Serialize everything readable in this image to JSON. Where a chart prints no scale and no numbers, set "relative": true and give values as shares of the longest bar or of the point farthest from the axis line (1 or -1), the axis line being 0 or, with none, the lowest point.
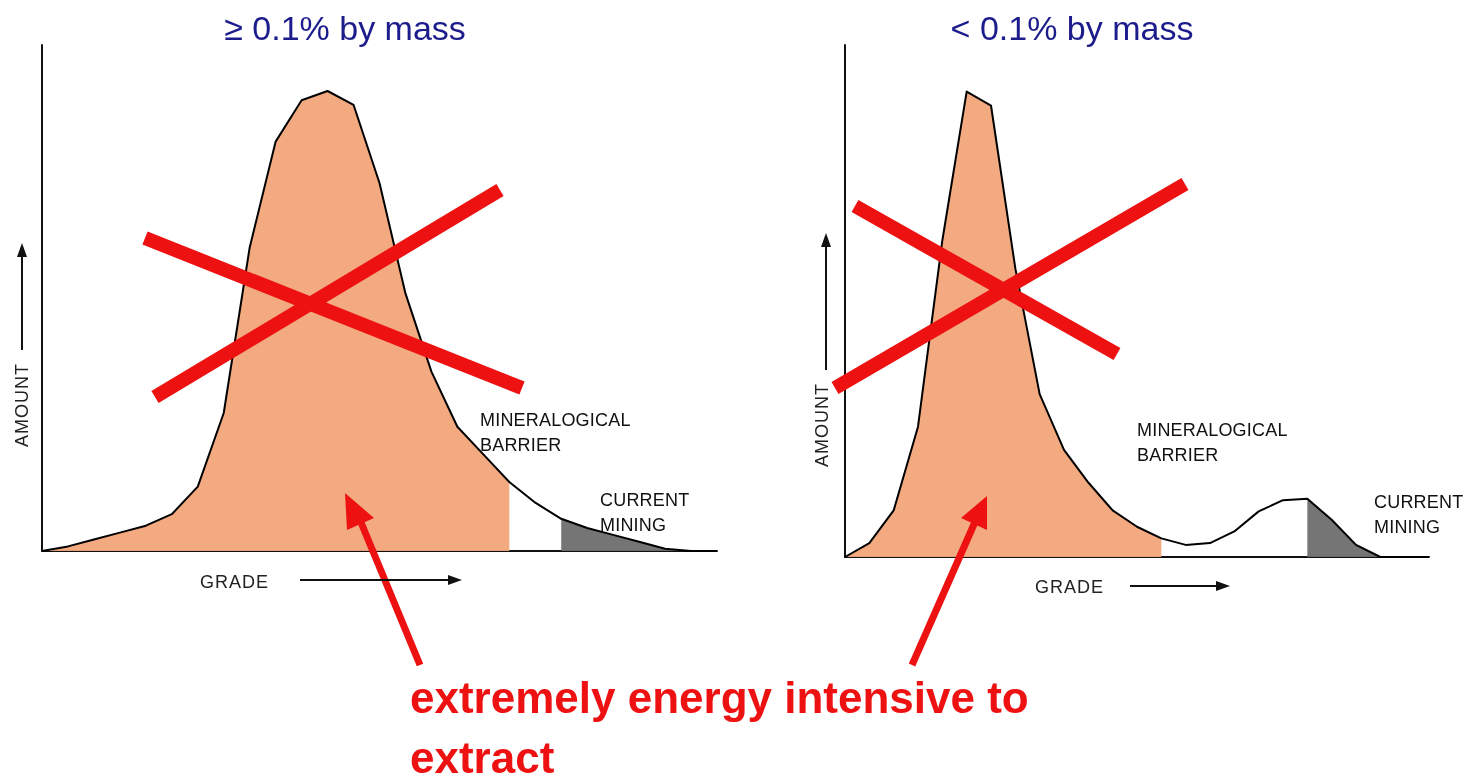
{
  "chart_data": [
    {
      "type": "area",
      "title": "≥ 0.1% by mass",
      "xlabel": "GRADE",
      "ylabel": "AMOUNT",
      "relative": true,
      "tick_labels": false,
      "grid": false,
      "marker": "none",
      "categories": [
        null,
        null,
        null,
        null,
        null,
        null,
        null,
        null,
        null,
        null,
        null,
        null,
        null,
        null,
        null,
        null,
        null,
        null,
        null,
        null,
        null,
        null,
        null,
        null,
        null,
        null,
        null
      ],
      "series": [
        {
          "type": "line",
          "color": "#000000",
          "values": [
            0,
            0.01,
            0.025,
            0.04,
            0.055,
            0.08,
            0.14,
            0.3,
            0.66,
            0.89,
            0.98,
            1.0,
            0.97,
            0.8,
            0.56,
            0.39,
            0.27,
            0.21,
            0.15,
            0.105,
            0.07,
            0.05,
            0.035,
            0.02,
            0.005,
            0,
            0
          ]
        },
        {
          "type": "area",
          "color": "#f2a57a",
          "values": [
            0,
            0.01,
            0.025,
            0.04,
            0.055,
            0.08,
            0.14,
            0.3,
            0.66,
            0.89,
            0.98,
            1.0,
            0.97,
            0.8,
            0.56,
            0.39,
            0.27,
            0.21,
            0.15,
            null,
            null,
            null,
            null,
            null,
            null,
            null,
            null
          ]
        },
        {
          "type": "area",
          "color": "#6e6e6e",
          "values": [
            null,
            null,
            null,
            null,
            null,
            null,
            null,
            null,
            null,
            null,
            null,
            null,
            null,
            null,
            null,
            null,
            null,
            null,
            null,
            null,
            0.07,
            0.05,
            0.035,
            0.02,
            0.005,
            0,
            null
          ]
        }
      ],
      "annotations": [
        "MINERALOGICAL BARRIER",
        "CURRENT MINING",
        "extremely energy intensive to extract"
      ]
    },
    {
      "type": "area",
      "title": "< 0.1% by mass",
      "xlabel": "GRADE",
      "ylabel": "AMOUNT",
      "relative": true,
      "tick_labels": false,
      "grid": false,
      "marker": "none",
      "categories": [
        null,
        null,
        null,
        null,
        null,
        null,
        null,
        null,
        null,
        null,
        null,
        null,
        null,
        null,
        null,
        null,
        null,
        null,
        null,
        null,
        null,
        null,
        null,
        null,
        null
      ],
      "series": [
        {
          "type": "line",
          "color": "#000000",
          "values": [
            0,
            0.03,
            0.1,
            0.28,
            0.68,
            1.0,
            0.97,
            0.62,
            0.35,
            0.23,
            0.16,
            0.1,
            0.065,
            0.04,
            0.026,
            0.03,
            0.055,
            0.098,
            0.122,
            0.125,
            0.08,
            0.026,
            0,
            0,
            0
          ]
        },
        {
          "type": "area",
          "color": "#f2a57a",
          "values": [
            0,
            0.03,
            0.1,
            0.28,
            0.68,
            1.0,
            0.97,
            0.62,
            0.35,
            0.23,
            0.16,
            0.1,
            0.065,
            0.04,
            null,
            null,
            null,
            null,
            null,
            null,
            null,
            null,
            null,
            null,
            null
          ]
        },
        {
          "type": "area",
          "color": "#6e6e6e",
          "values": [
            null,
            null,
            null,
            null,
            null,
            null,
            null,
            null,
            null,
            null,
            null,
            null,
            null,
            null,
            null,
            null,
            null,
            null,
            null,
            0.125,
            0.08,
            0.026,
            0,
            null,
            null
          ]
        }
      ],
      "annotations": [
        "MINERALOGICAL BARRIER",
        "CURRENT MINING"
      ]
    }
  ]
}
